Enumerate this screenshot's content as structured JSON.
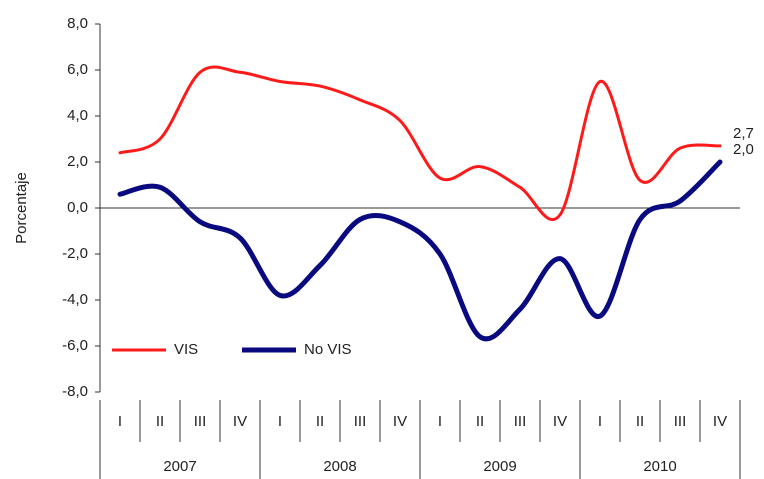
{
  "chart_data": {
    "type": "line",
    "ylabel": "Porcentaje",
    "categories": [
      "I",
      "II",
      "III",
      "IV",
      "I",
      "II",
      "III",
      "IV",
      "I",
      "II",
      "III",
      "IV",
      "I",
      "II",
      "III",
      "IV"
    ],
    "groups": [
      "2007",
      "2008",
      "2009",
      "2010"
    ],
    "ylim": [
      -8,
      8
    ],
    "yticks": [
      {
        "value": -8,
        "label": "-8,0"
      },
      {
        "value": -6,
        "label": "-6,0"
      },
      {
        "value": -4,
        "label": "-4,0"
      },
      {
        "value": -2,
        "label": "-2,0"
      },
      {
        "value": 0,
        "label": "0,0"
      },
      {
        "value": 2,
        "label": "2,0"
      },
      {
        "value": 4,
        "label": "4,0"
      },
      {
        "value": 6,
        "label": "6,0"
      },
      {
        "value": 8,
        "label": "8,0"
      }
    ],
    "legend": "lower left",
    "series": [
      {
        "name": "VIS",
        "color": "#ff1a1a",
        "width": 3,
        "values": [
          2.4,
          3.0,
          5.9,
          5.9,
          5.5,
          5.3,
          4.7,
          3.8,
          1.3,
          1.8,
          0.9,
          -0.3,
          5.5,
          1.2,
          2.6,
          2.7
        ],
        "value_labels": [
          null,
          null,
          null,
          null,
          null,
          null,
          null,
          null,
          null,
          null,
          null,
          null,
          null,
          null,
          null,
          "2,7"
        ]
      },
      {
        "name": "No VIS",
        "color": "#0a0a80",
        "width": 5,
        "values": [
          0.6,
          0.9,
          -0.6,
          -1.3,
          -3.8,
          -2.5,
          -0.5,
          -0.6,
          -2.0,
          -5.6,
          -4.4,
          -2.2,
          -4.7,
          -0.5,
          0.3,
          2.0
        ],
        "value_labels": [
          null,
          null,
          null,
          null,
          null,
          null,
          null,
          null,
          null,
          null,
          null,
          null,
          null,
          null,
          null,
          "2,0"
        ]
      }
    ]
  }
}
